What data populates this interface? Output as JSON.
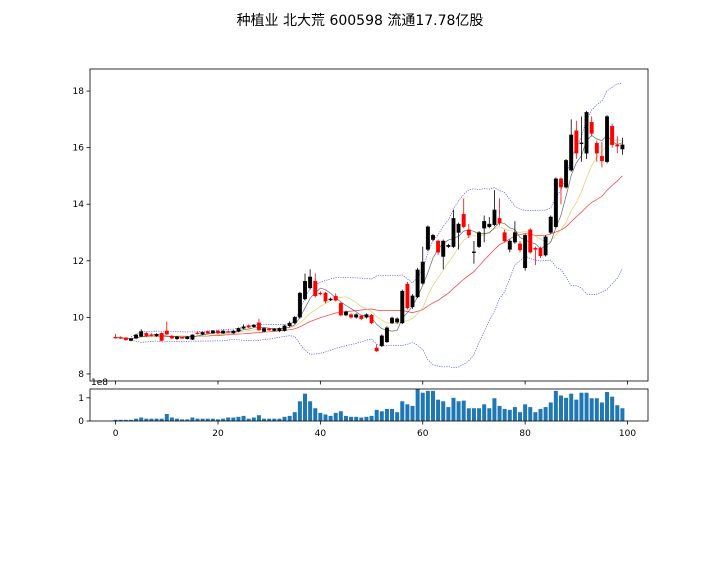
{
  "chart_data": {
    "title": "种植业  北大荒  600598  流通17.78亿股",
    "type": "candlestick",
    "colors": {
      "up": "#000000",
      "down": "#ff0000",
      "ma5": "#000000",
      "ma10": "#d4c646",
      "ma20": "#ff0000",
      "bollinger": "#0000ff",
      "volume": "#1f77b4"
    },
    "price_panel": {
      "ylim": [
        7.75,
        18.78
      ],
      "yticks": [
        8,
        10,
        12,
        14,
        16,
        18
      ],
      "overlays": [
        "MA5",
        "MA10",
        "MA20",
        "Bollinger(20,2)"
      ],
      "ohlc": [
        [
          9.3,
          9.42,
          9.25,
          9.28
        ],
        [
          9.29,
          9.33,
          9.24,
          9.28
        ],
        [
          9.28,
          9.3,
          9.18,
          9.2
        ],
        [
          9.18,
          9.27,
          9.16,
          9.24
        ],
        [
          9.26,
          9.42,
          9.24,
          9.38
        ],
        [
          9.33,
          9.58,
          9.3,
          9.5
        ],
        [
          9.44,
          9.48,
          9.3,
          9.35
        ],
        [
          9.39,
          9.44,
          9.33,
          9.38
        ],
        [
          9.34,
          9.44,
          9.31,
          9.4
        ],
        [
          9.44,
          9.47,
          9.15,
          9.18
        ],
        [
          9.52,
          9.85,
          9.38,
          9.4
        ],
        [
          9.34,
          9.38,
          9.22,
          9.26
        ],
        [
          9.24,
          9.34,
          9.2,
          9.32
        ],
        [
          9.29,
          9.32,
          9.25,
          9.28
        ],
        [
          9.24,
          9.34,
          9.22,
          9.32
        ],
        [
          9.22,
          9.4,
          9.2,
          9.38
        ],
        [
          9.45,
          9.49,
          9.4,
          9.44
        ],
        [
          9.4,
          9.5,
          9.38,
          9.47
        ],
        [
          9.5,
          9.53,
          9.42,
          9.44
        ],
        [
          9.44,
          9.55,
          9.42,
          9.52
        ],
        [
          9.52,
          9.55,
          9.42,
          9.44
        ],
        [
          9.44,
          9.55,
          9.42,
          9.52
        ],
        [
          9.5,
          9.54,
          9.46,
          9.49
        ],
        [
          9.44,
          9.55,
          9.42,
          9.52
        ],
        [
          9.5,
          9.64,
          9.48,
          9.61
        ],
        [
          9.61,
          9.75,
          9.58,
          9.67
        ],
        [
          9.71,
          9.75,
          9.62,
          9.65
        ],
        [
          9.67,
          9.76,
          9.64,
          9.73
        ],
        [
          9.81,
          9.95,
          9.52,
          9.55
        ],
        [
          9.5,
          9.64,
          9.48,
          9.61
        ],
        [
          9.6,
          9.63,
          9.52,
          9.55
        ],
        [
          9.53,
          9.62,
          9.5,
          9.59
        ],
        [
          9.52,
          9.64,
          9.48,
          9.61
        ],
        [
          9.53,
          9.74,
          9.5,
          9.7
        ],
        [
          9.7,
          9.86,
          9.66,
          9.8
        ],
        [
          9.8,
          10.05,
          9.76,
          10.0
        ],
        [
          10.0,
          10.9,
          9.96,
          10.86
        ],
        [
          10.65,
          11.55,
          10.6,
          11.28
        ],
        [
          11.04,
          11.7,
          10.98,
          11.43
        ],
        [
          11.28,
          11.55,
          10.7,
          10.76
        ],
        [
          10.86,
          10.92,
          10.78,
          10.84
        ],
        [
          10.86,
          10.9,
          10.5,
          10.57
        ],
        [
          10.62,
          10.7,
          10.58,
          10.65
        ],
        [
          10.75,
          10.85,
          10.56,
          10.6
        ],
        [
          10.5,
          10.55,
          10.04,
          10.08
        ],
        [
          10.08,
          10.24,
          10.04,
          10.2
        ],
        [
          10.1,
          10.14,
          9.96,
          10.0
        ],
        [
          10.0,
          10.14,
          9.96,
          10.1
        ],
        [
          10.05,
          10.1,
          9.9,
          9.95
        ],
        [
          10.0,
          10.14,
          9.96,
          10.1
        ],
        [
          10.08,
          10.12,
          9.76,
          9.8
        ],
        [
          8.92,
          9.05,
          8.78,
          8.81
        ],
        [
          8.99,
          9.4,
          8.95,
          9.35
        ],
        [
          9.13,
          9.68,
          9.1,
          9.63
        ],
        [
          9.8,
          10.02,
          9.76,
          9.98
        ],
        [
          9.83,
          10.0,
          9.78,
          9.95
        ],
        [
          9.8,
          10.98,
          9.76,
          10.93
        ],
        [
          11.18,
          11.25,
          10.28,
          10.33
        ],
        [
          10.37,
          10.82,
          10.3,
          10.76
        ],
        [
          10.72,
          11.75,
          10.68,
          11.68
        ],
        [
          11.2,
          12.5,
          11.15,
          11.96
        ],
        [
          12.4,
          13.25,
          12.35,
          13.2
        ],
        [
          12.75,
          12.95,
          12.7,
          12.9
        ],
        [
          12.7,
          12.75,
          12.2,
          12.3
        ],
        [
          12.15,
          12.75,
          11.7,
          12.7
        ],
        [
          12.5,
          12.6,
          12.45,
          12.55
        ],
        [
          12.5,
          13.8,
          12.45,
          13.5
        ],
        [
          13.0,
          13.35,
          12.4,
          13.3
        ],
        [
          13.65,
          14.2,
          13.15,
          13.2
        ],
        [
          13.1,
          13.3,
          12.8,
          12.9
        ],
        [
          12.3,
          12.7,
          11.9,
          12.32
        ],
        [
          12.5,
          13.05,
          12.45,
          13.0
        ],
        [
          13.15,
          13.6,
          12.65,
          13.4
        ],
        [
          13.2,
          13.55,
          13.15,
          13.3
        ],
        [
          13.27,
          14.5,
          13.22,
          13.8
        ],
        [
          13.5,
          14.2,
          13.25,
          13.33
        ],
        [
          13.0,
          13.1,
          12.65,
          12.7
        ],
        [
          12.4,
          12.75,
          12.3,
          12.7
        ],
        [
          12.66,
          13.4,
          12.6,
          13.0
        ],
        [
          12.6,
          12.7,
          12.3,
          12.38
        ],
        [
          11.75,
          12.95,
          11.65,
          12.9
        ],
        [
          13.1,
          13.15,
          12.25,
          12.3
        ],
        [
          12.45,
          12.5,
          11.85,
          12.4
        ],
        [
          12.45,
          12.5,
          12.1,
          12.17
        ],
        [
          12.2,
          12.9,
          12.15,
          12.85
        ],
        [
          13.0,
          13.6,
          12.95,
          13.55
        ],
        [
          13.2,
          14.95,
          13.15,
          14.9
        ],
        [
          14.9,
          14.95,
          14.0,
          14.6
        ],
        [
          14.6,
          15.6,
          14.55,
          15.55
        ],
        [
          15.2,
          17.0,
          15.15,
          16.45
        ],
        [
          16.6,
          16.95,
          15.6,
          15.8
        ],
        [
          16.15,
          17.1,
          15.5,
          16.17
        ],
        [
          15.8,
          17.3,
          15.6,
          17.25
        ],
        [
          16.9,
          17.1,
          16.4,
          16.5
        ],
        [
          16.16,
          16.25,
          15.5,
          15.8
        ],
        [
          15.7,
          16.2,
          15.3,
          15.53
        ],
        [
          15.5,
          17.15,
          15.45,
          17.1
        ],
        [
          16.76,
          16.85,
          16.0,
          16.1
        ],
        [
          16.1,
          16.4,
          15.8,
          16.05
        ],
        [
          15.95,
          16.35,
          15.75,
          16.1
        ]
      ]
    },
    "volume_panel": {
      "ylim": [
        0,
        1.38
      ],
      "yticks": [
        0,
        1
      ],
      "offset_label": "1e8",
      "values": [
        0.05,
        0.05,
        0.05,
        0.05,
        0.1,
        0.15,
        0.1,
        0.1,
        0.1,
        0.1,
        0.3,
        0.15,
        0.1,
        0.07,
        0.07,
        0.15,
        0.1,
        0.1,
        0.1,
        0.1,
        0.07,
        0.1,
        0.15,
        0.15,
        0.18,
        0.22,
        0.1,
        0.15,
        0.25,
        0.1,
        0.1,
        0.1,
        0.1,
        0.18,
        0.22,
        0.38,
        0.85,
        1.18,
        0.85,
        0.55,
        0.35,
        0.28,
        0.22,
        0.35,
        0.42,
        0.22,
        0.18,
        0.18,
        0.15,
        0.18,
        0.22,
        0.48,
        0.42,
        0.52,
        0.52,
        0.38,
        0.85,
        0.72,
        0.65,
        1.38,
        1.22,
        1.3,
        1.3,
        0.92,
        0.85,
        0.6,
        1.0,
        0.85,
        0.88,
        0.55,
        0.55,
        0.55,
        0.72,
        0.55,
        0.98,
        0.65,
        0.52,
        0.48,
        0.6,
        0.38,
        0.72,
        0.6,
        0.38,
        0.52,
        0.6,
        0.8,
        1.3,
        1.1,
        1.0,
        1.18,
        0.92,
        1.22,
        1.22,
        0.98,
        0.98,
        0.8,
        1.25,
        1.05,
        0.68,
        0.55
      ]
    },
    "xlim": [
      -5,
      104
    ],
    "xticks": [
      0,
      20,
      40,
      60,
      80,
      100
    ]
  }
}
